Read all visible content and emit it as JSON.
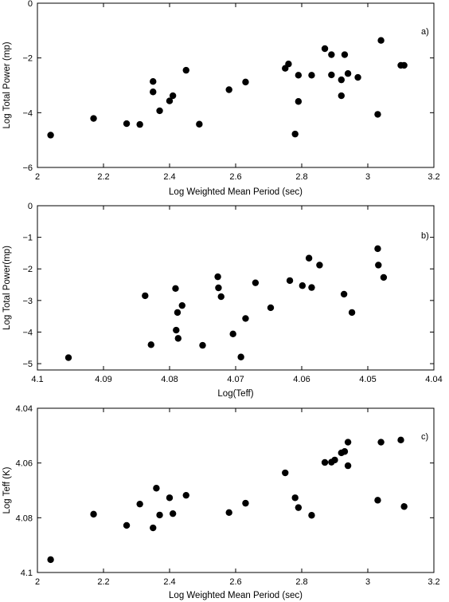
{
  "chart_data": [
    {
      "type": "scatter",
      "panel_label": "a)",
      "xlabel": "Log Weighted Mean Period (sec)",
      "ylabel": "Log Total Power (mp)",
      "xlim": [
        2,
        3.2
      ],
      "ylim": [
        -6,
        0
      ],
      "xticks": [
        2,
        2.2,
        2.4,
        2.6,
        2.8,
        3,
        3.2
      ],
      "xtick_labels": [
        "2",
        "2.2",
        "2.4",
        "2.6",
        "2.8",
        "3",
        "3.2"
      ],
      "yticks": [
        0,
        -2,
        -4,
        -6
      ],
      "ytick_labels": [
        "0",
        "−2",
        "−4",
        "−6"
      ],
      "x": [
        2.04,
        2.17,
        2.27,
        2.31,
        2.35,
        2.35,
        2.37,
        2.4,
        2.41,
        2.45,
        2.49,
        2.58,
        2.63,
        2.75,
        2.76,
        2.78,
        2.79,
        2.79,
        2.83,
        2.87,
        2.89,
        2.89,
        2.92,
        2.92,
        2.93,
        2.94,
        2.97,
        3.03,
        3.04,
        3.1,
        3.11
      ],
      "y": [
        -4.82,
        -4.21,
        -4.4,
        -4.43,
        -2.86,
        -3.24,
        -3.93,
        -3.57,
        -3.38,
        -2.45,
        -4.42,
        -3.16,
        -2.88,
        -2.38,
        -2.22,
        -4.78,
        -2.63,
        -3.59,
        -2.63,
        -1.66,
        -1.88,
        -2.62,
        -2.8,
        -3.38,
        -1.88,
        -2.57,
        -2.71,
        -4.06,
        -1.36,
        -2.27,
        -2.27
      ]
    },
    {
      "type": "scatter",
      "panel_label": "b)",
      "xlabel": "Log(Teff)",
      "ylabel": "Log Total Power(mp)",
      "xlim": [
        4.1,
        4.04
      ],
      "ylim": [
        -5.2,
        0
      ],
      "xticks": [
        4.1,
        4.09,
        4.08,
        4.07,
        4.06,
        4.05,
        4.04
      ],
      "xtick_labels": [
        "4.1",
        "4.09",
        "4.08",
        "4.07",
        "4.06",
        "4.05",
        "4.04"
      ],
      "yticks": [
        0,
        -1,
        -2,
        -3,
        -4,
        -5
      ],
      "ytick_labels": [
        "0",
        "−1",
        "−2",
        "−3",
        "−4",
        "−5"
      ],
      "x": [
        4.0953,
        4.0837,
        4.0828,
        4.0791,
        4.079,
        4.0788,
        4.0787,
        4.0781,
        4.075,
        4.0727,
        4.0726,
        4.0722,
        4.0704,
        4.0692,
        4.0685,
        4.067,
        4.0647,
        4.0618,
        4.0599,
        4.0589,
        4.0585,
        4.0573,
        4.0536,
        4.0524,
        4.0485,
        4.0484,
        4.0476
      ],
      "y": [
        -4.81,
        -2.85,
        -4.4,
        -2.62,
        -3.94,
        -3.38,
        -4.2,
        -3.16,
        -4.42,
        -2.25,
        -2.6,
        -2.88,
        -4.06,
        -4.79,
        -3.57,
        -2.44,
        -3.23,
        -2.37,
        -2.53,
        -1.66,
        -2.59,
        -1.88,
        -2.8,
        -3.38,
        -1.36,
        -1.88,
        -2.27
      ]
    },
    {
      "type": "scatter",
      "panel_label": "c)",
      "xlabel": "Log Weighted Mean Period (sec)",
      "ylabel": "Log Teff (K)",
      "xlim": [
        2,
        3.2
      ],
      "ylim": [
        4.1,
        4.04
      ],
      "xticks": [
        2,
        2.2,
        2.4,
        2.6,
        2.8,
        3,
        3.2
      ],
      "xtick_labels": [
        "2",
        "2.2",
        "2.4",
        "2.6",
        "2.8",
        "3",
        "3.2"
      ],
      "yticks": [
        4.04,
        4.06,
        4.08,
        4.1
      ],
      "ytick_labels": [
        "4.04",
        "4.06",
        "4.08",
        "4.1"
      ],
      "x": [
        2.04,
        2.17,
        2.27,
        2.31,
        2.35,
        2.36,
        2.37,
        2.4,
        2.41,
        2.45,
        2.58,
        2.63,
        2.75,
        2.78,
        2.79,
        2.83,
        2.87,
        2.89,
        2.9,
        2.92,
        2.93,
        2.94,
        2.94,
        3.03,
        3.04,
        3.1,
        3.11
      ],
      "y": [
        4.0953,
        4.0787,
        4.0828,
        4.075,
        4.0837,
        4.0692,
        4.079,
        4.0727,
        4.0785,
        4.0718,
        4.0781,
        4.0747,
        4.0636,
        4.0727,
        4.0763,
        4.0791,
        4.0598,
        4.0597,
        4.0589,
        4.0563,
        4.0558,
        4.0524,
        4.061,
        4.0736,
        4.0524,
        4.0516,
        4.0759
      ]
    }
  ]
}
